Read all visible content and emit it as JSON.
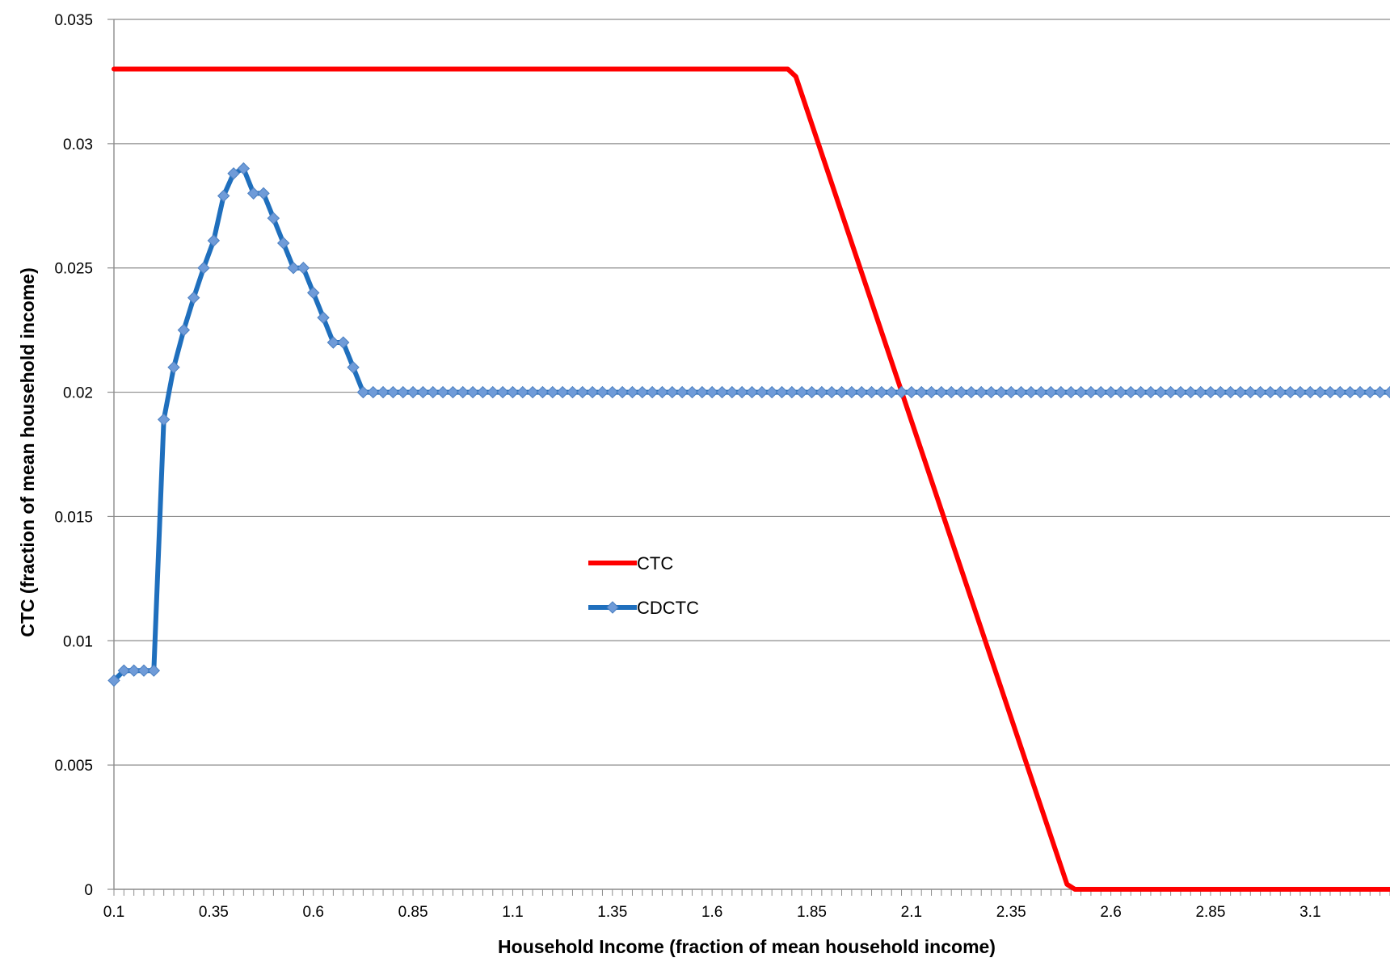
{
  "chart_data": {
    "type": "line",
    "title": "",
    "xlabel": "Household Income (fraction of mean household income)",
    "ylabel": "CTC (fraction of mean household income)",
    "xlim": [
      0.1,
      3.3
    ],
    "ylim": [
      0,
      0.035
    ],
    "x_step": 0.01,
    "x_tick_labels": [
      "0.1",
      "0.35",
      "0.6",
      "0.85",
      "1.1",
      "1.35",
      "1.6",
      "1.85",
      "2.1",
      "2.35",
      "2.6",
      "2.85",
      "3.1"
    ],
    "x_tick_values": [
      0.1,
      0.35,
      0.6,
      0.85,
      1.1,
      1.35,
      1.6,
      1.85,
      2.1,
      2.35,
      2.6,
      2.85,
      3.1
    ],
    "y_tick_labels": [
      "0",
      "0.005",
      "0.01",
      "0.015",
      "0.02",
      "0.025",
      "0.03",
      "0.035"
    ],
    "y_tick_values": [
      0,
      0.005,
      0.01,
      0.015,
      0.02,
      0.025,
      0.03,
      0.035
    ],
    "grid": "horizontal",
    "legend_position": "center-left",
    "series": [
      {
        "name": "CTC",
        "color": "#ff0000",
        "marker": "none",
        "points": [
          [
            0.1,
            0.033
          ],
          [
            1.79,
            0.033
          ],
          [
            1.81,
            0.0327
          ],
          [
            2.49,
            0.0002
          ],
          [
            2.51,
            0.0
          ],
          [
            3.3,
            0.0
          ]
        ]
      },
      {
        "name": "CDCTC",
        "color": "#1f6fbd",
        "marker_color": "#6f9bd8",
        "marker": "diamond",
        "points": [
          [
            0.1,
            0.0084
          ],
          [
            0.125,
            0.0088
          ],
          [
            0.15,
            0.0088
          ],
          [
            0.175,
            0.0088
          ],
          [
            0.2,
            0.0088
          ],
          [
            0.225,
            0.0189
          ],
          [
            0.25,
            0.021
          ],
          [
            0.275,
            0.0225
          ],
          [
            0.3,
            0.0238
          ],
          [
            0.325,
            0.025
          ],
          [
            0.35,
            0.0261
          ],
          [
            0.375,
            0.0279
          ],
          [
            0.4,
            0.0288
          ],
          [
            0.425,
            0.029
          ],
          [
            0.45,
            0.028
          ],
          [
            0.475,
            0.028
          ],
          [
            0.5,
            0.027
          ],
          [
            0.525,
            0.026
          ],
          [
            0.55,
            0.025
          ],
          [
            0.575,
            0.025
          ],
          [
            0.6,
            0.024
          ],
          [
            0.625,
            0.023
          ],
          [
            0.65,
            0.022
          ],
          [
            0.675,
            0.022
          ],
          [
            0.7,
            0.021
          ],
          [
            0.725,
            0.02
          ],
          [
            0.75,
            0.02
          ],
          [
            3.3,
            0.02
          ]
        ],
        "flat_value": 0.02,
        "flat_from": 0.725,
        "flat_to": 3.3,
        "flat_step": 0.025
      }
    ]
  }
}
